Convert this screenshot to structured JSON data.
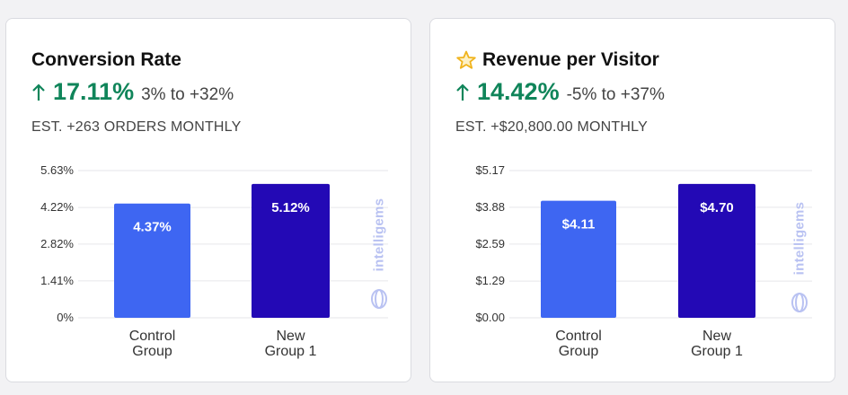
{
  "colors": {
    "positive": "#10855a",
    "control_bar": "#3e66f2",
    "variant_bar": "#2309b5",
    "star": "#f0b31c",
    "watermark": "#b9c2f2"
  },
  "watermark_text": "intelligems",
  "cards": [
    {
      "title": "Conversion Rate",
      "starred": false,
      "lift": "17.11%",
      "range": "3% to +32%",
      "estimate": "EST. +263 ORDERS MONTHLY"
    },
    {
      "title": "Revenue per Visitor",
      "starred": true,
      "lift": "14.42%",
      "range": "-5% to +37%",
      "estimate": "EST. +$20,800.00 MONTHLY"
    }
  ],
  "chart_data": [
    {
      "type": "bar",
      "title": "Conversion Rate",
      "categories": [
        [
          "Control",
          "Group"
        ],
        [
          "New",
          "Group 1"
        ]
      ],
      "values": [
        4.37,
        5.12
      ],
      "data_labels": [
        "4.37%",
        "5.12%"
      ],
      "yticks": [
        0,
        1.41,
        2.82,
        4.22,
        5.63
      ],
      "ytick_labels": [
        "0%",
        "1.41%",
        "2.82%",
        "4.22%",
        "5.63%"
      ],
      "ylim": [
        0,
        5.63
      ]
    },
    {
      "type": "bar",
      "title": "Revenue per Visitor",
      "categories": [
        [
          "Control",
          "Group"
        ],
        [
          "New",
          "Group 1"
        ]
      ],
      "values": [
        4.11,
        4.7
      ],
      "data_labels": [
        "$4.11",
        "$4.70"
      ],
      "yticks": [
        0,
        1.29,
        2.59,
        3.88,
        5.17
      ],
      "ytick_labels": [
        "$0.00",
        "$1.29",
        "$2.59",
        "$3.88",
        "$5.17"
      ],
      "ylim": [
        0,
        5.17
      ]
    }
  ]
}
